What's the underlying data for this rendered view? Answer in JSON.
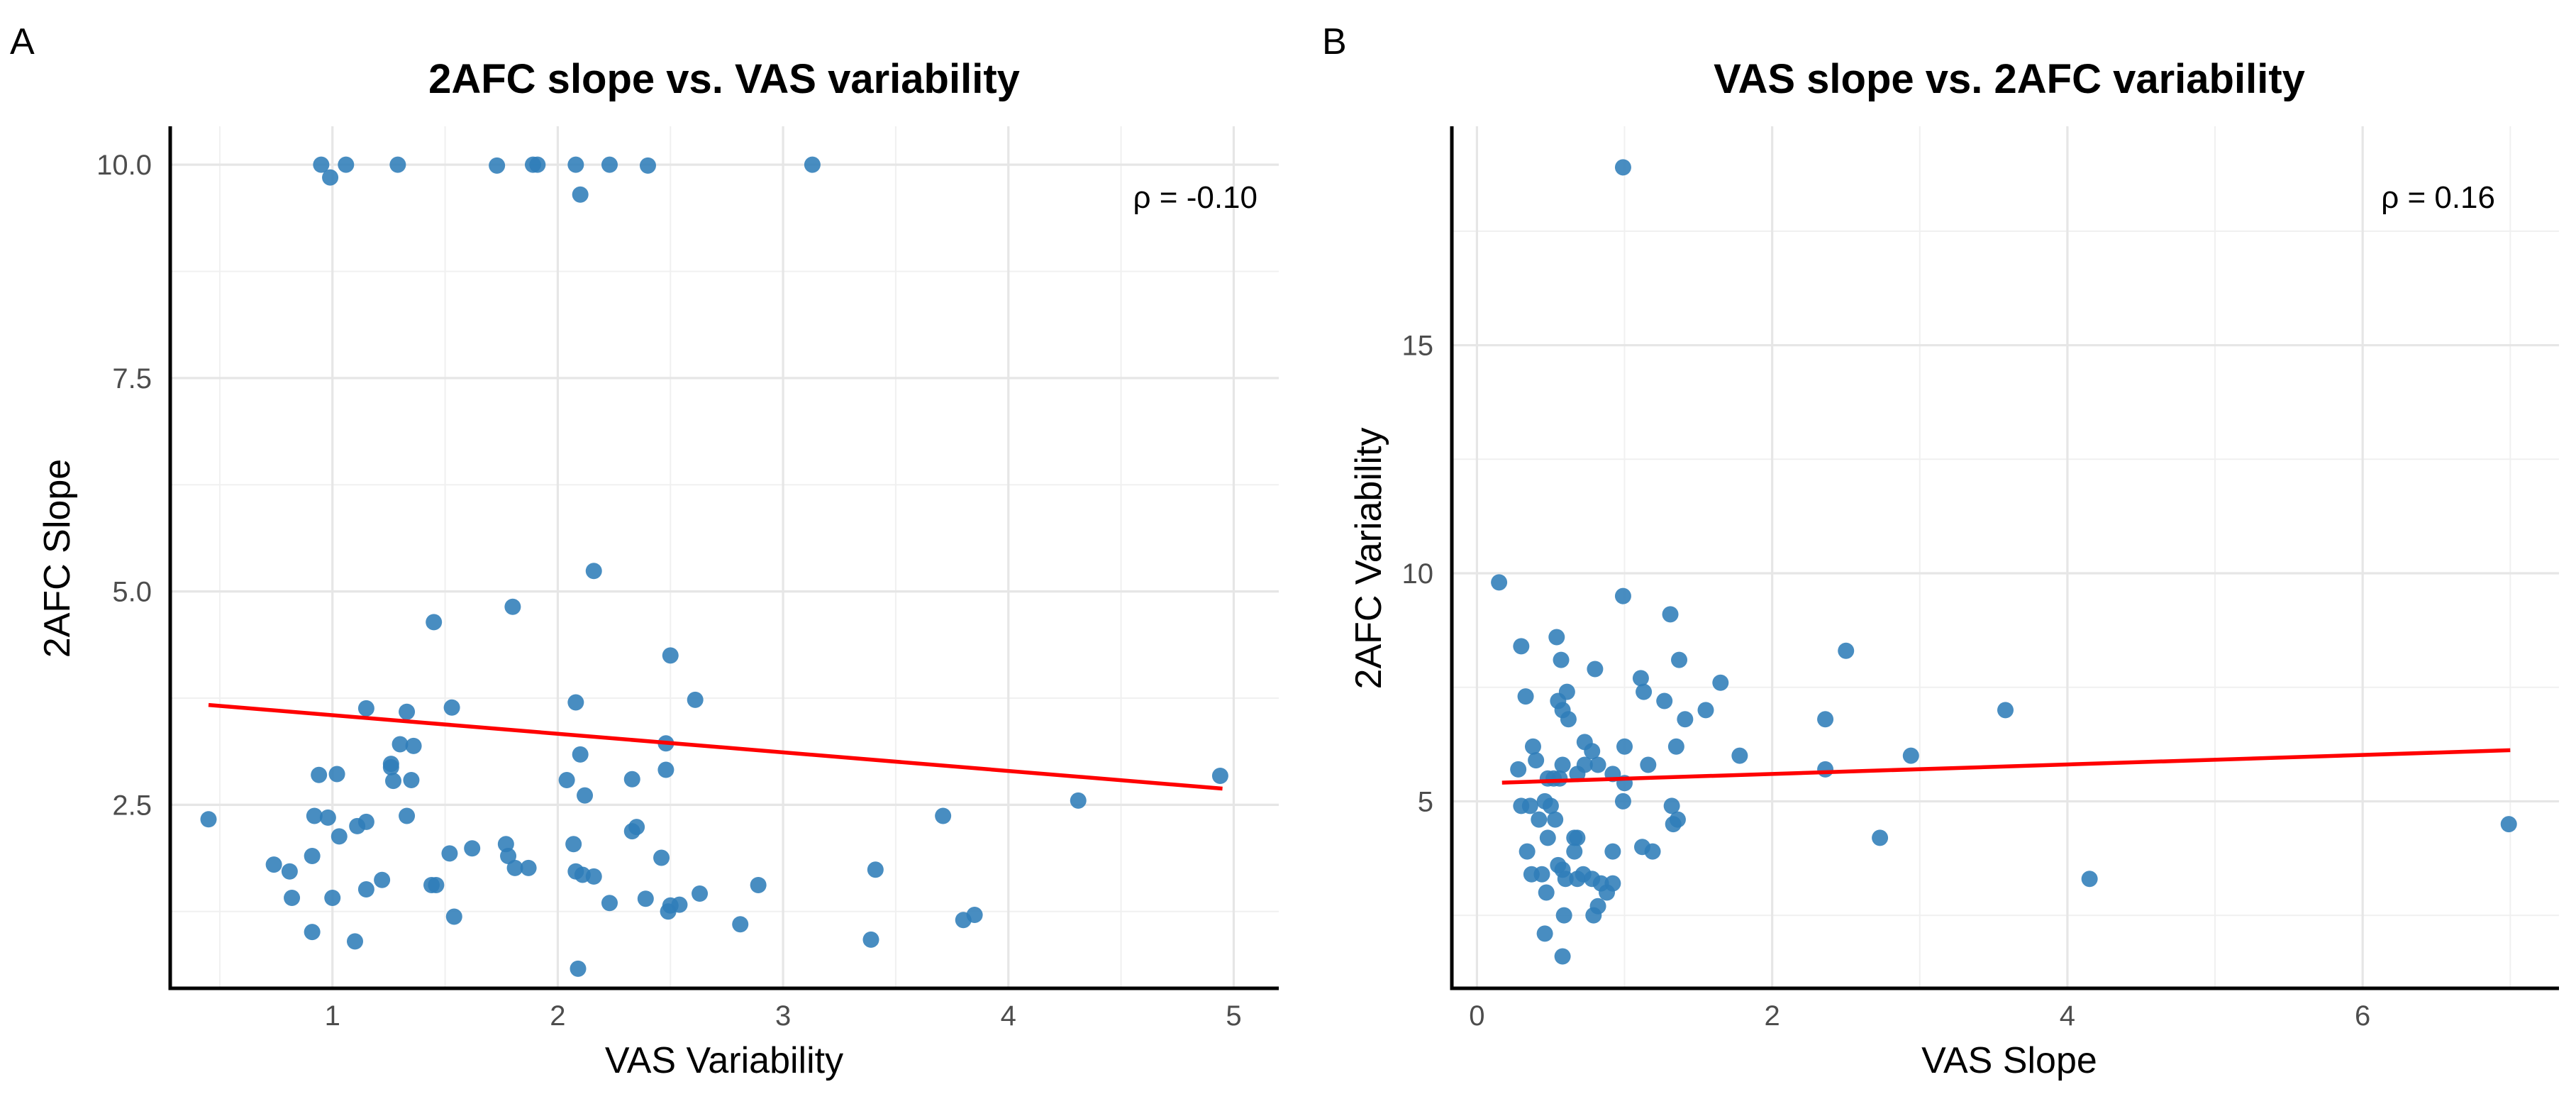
{
  "chart_data": [
    {
      "panel": "A",
      "type": "scatter",
      "title": "2AFC slope vs. VAS variability",
      "xlabel": "VAS Variability",
      "ylabel": "2AFC Slope",
      "xlim": [
        0.28,
        5.2
      ],
      "ylim": [
        0.35,
        10.45
      ],
      "xticks": [
        1,
        2,
        3,
        4,
        5
      ],
      "xtick_labels": [
        "1",
        "2",
        "3",
        "4",
        "5"
      ],
      "yticks": [
        2.5,
        5.0,
        7.5,
        10.0
      ],
      "ytick_labels": [
        "2.5",
        "5.0",
        "7.5",
        "10.0"
      ],
      "annotation": "ρ = -0.10",
      "grid": true,
      "fit_line": {
        "x": [
          0.45,
          4.95
        ],
        "y": [
          3.67,
          2.69
        ]
      },
      "points": [
        {
          "x": 0.95,
          "y": 10.0
        },
        {
          "x": 0.99,
          "y": 9.85
        },
        {
          "x": 1.06,
          "y": 10.0
        },
        {
          "x": 1.29,
          "y": 10.0
        },
        {
          "x": 1.73,
          "y": 9.99
        },
        {
          "x": 1.89,
          "y": 10.0
        },
        {
          "x": 1.91,
          "y": 10.0
        },
        {
          "x": 2.08,
          "y": 10.0
        },
        {
          "x": 2.23,
          "y": 10.0
        },
        {
          "x": 2.4,
          "y": 9.99
        },
        {
          "x": 3.13,
          "y": 10.0
        },
        {
          "x": 2.1,
          "y": 9.65
        },
        {
          "x": 2.16,
          "y": 5.24
        },
        {
          "x": 1.8,
          "y": 4.82
        },
        {
          "x": 1.45,
          "y": 4.64
        },
        {
          "x": 2.5,
          "y": 4.25
        },
        {
          "x": 2.61,
          "y": 3.73
        },
        {
          "x": 2.08,
          "y": 3.7
        },
        {
          "x": 1.15,
          "y": 3.63
        },
        {
          "x": 1.33,
          "y": 3.59
        },
        {
          "x": 1.53,
          "y": 3.64
        },
        {
          "x": 2.48,
          "y": 3.22
        },
        {
          "x": 1.3,
          "y": 3.21
        },
        {
          "x": 1.36,
          "y": 3.19
        },
        {
          "x": 2.1,
          "y": 3.09
        },
        {
          "x": 1.26,
          "y": 2.98
        },
        {
          "x": 2.48,
          "y": 2.91
        },
        {
          "x": 1.26,
          "y": 2.94
        },
        {
          "x": 0.94,
          "y": 2.85
        },
        {
          "x": 1.02,
          "y": 2.86
        },
        {
          "x": 2.33,
          "y": 2.8
        },
        {
          "x": 2.04,
          "y": 2.79
        },
        {
          "x": 1.27,
          "y": 2.78
        },
        {
          "x": 1.35,
          "y": 2.79
        },
        {
          "x": 4.94,
          "y": 2.84
        },
        {
          "x": 2.12,
          "y": 2.61
        },
        {
          "x": 4.31,
          "y": 2.55
        },
        {
          "x": 0.45,
          "y": 2.33
        },
        {
          "x": 0.92,
          "y": 2.37
        },
        {
          "x": 0.98,
          "y": 2.35
        },
        {
          "x": 1.33,
          "y": 2.37
        },
        {
          "x": 3.71,
          "y": 2.37
        },
        {
          "x": 1.15,
          "y": 2.3
        },
        {
          "x": 1.11,
          "y": 2.25
        },
        {
          "x": 2.35,
          "y": 2.24
        },
        {
          "x": 2.33,
          "y": 2.19
        },
        {
          "x": 1.03,
          "y": 2.13
        },
        {
          "x": 1.77,
          "y": 2.04
        },
        {
          "x": 2.07,
          "y": 2.04
        },
        {
          "x": 1.62,
          "y": 1.99
        },
        {
          "x": 1.52,
          "y": 1.93
        },
        {
          "x": 0.91,
          "y": 1.9
        },
        {
          "x": 1.78,
          "y": 1.9
        },
        {
          "x": 2.46,
          "y": 1.88
        },
        {
          "x": 0.74,
          "y": 1.8
        },
        {
          "x": 1.81,
          "y": 1.76
        },
        {
          "x": 1.87,
          "y": 1.76
        },
        {
          "x": 0.81,
          "y": 1.72
        },
        {
          "x": 2.08,
          "y": 1.72
        },
        {
          "x": 3.41,
          "y": 1.74
        },
        {
          "x": 2.11,
          "y": 1.68
        },
        {
          "x": 2.16,
          "y": 1.66
        },
        {
          "x": 1.22,
          "y": 1.62
        },
        {
          "x": 1.44,
          "y": 1.56
        },
        {
          "x": 1.46,
          "y": 1.56
        },
        {
          "x": 2.89,
          "y": 1.56
        },
        {
          "x": 1.15,
          "y": 1.51
        },
        {
          "x": 0.82,
          "y": 1.41
        },
        {
          "x": 1.0,
          "y": 1.41
        },
        {
          "x": 2.63,
          "y": 1.46
        },
        {
          "x": 2.39,
          "y": 1.4
        },
        {
          "x": 2.23,
          "y": 1.35
        },
        {
          "x": 2.54,
          "y": 1.33
        },
        {
          "x": 2.5,
          "y": 1.32
        },
        {
          "x": 2.49,
          "y": 1.25
        },
        {
          "x": 3.85,
          "y": 1.21
        },
        {
          "x": 1.54,
          "y": 1.19
        },
        {
          "x": 3.8,
          "y": 1.15
        },
        {
          "x": 2.81,
          "y": 1.1
        },
        {
          "x": 0.91,
          "y": 1.01
        },
        {
          "x": 3.39,
          "y": 0.92
        },
        {
          "x": 1.1,
          "y": 0.9
        },
        {
          "x": 2.09,
          "y": 0.58
        }
      ]
    },
    {
      "panel": "B",
      "type": "scatter",
      "title": "VAS slope vs. 2AFC variability",
      "xlabel": "VAS Slope",
      "ylabel": "2AFC Variability",
      "xlim": [
        -0.17,
        7.33
      ],
      "ylim": [
        0.9,
        19.8
      ],
      "xticks": [
        0,
        2,
        4,
        6
      ],
      "xtick_labels": [
        "0",
        "2",
        "4",
        "6"
      ],
      "yticks": [
        5,
        10,
        15
      ],
      "ytick_labels": [
        "5",
        "10",
        "15"
      ],
      "annotation": "ρ = 0.16",
      "grid": true,
      "fit_line": {
        "x": [
          0.17,
          7.0
        ],
        "y": [
          5.41,
          6.12
        ]
      },
      "points": [
        {
          "x": 0.99,
          "y": 18.9
        },
        {
          "x": 0.15,
          "y": 9.8
        },
        {
          "x": 0.99,
          "y": 9.5
        },
        {
          "x": 1.31,
          "y": 9.1
        },
        {
          "x": 0.54,
          "y": 8.6
        },
        {
          "x": 0.3,
          "y": 8.4
        },
        {
          "x": 2.5,
          "y": 8.3
        },
        {
          "x": 0.57,
          "y": 8.1
        },
        {
          "x": 1.37,
          "y": 8.1
        },
        {
          "x": 0.8,
          "y": 7.9
        },
        {
          "x": 1.11,
          "y": 7.7
        },
        {
          "x": 1.65,
          "y": 7.6
        },
        {
          "x": 0.61,
          "y": 7.4
        },
        {
          "x": 1.13,
          "y": 7.4
        },
        {
          "x": 0.33,
          "y": 7.3
        },
        {
          "x": 0.55,
          "y": 7.2
        },
        {
          "x": 1.27,
          "y": 7.2
        },
        {
          "x": 0.58,
          "y": 7.0
        },
        {
          "x": 1.55,
          "y": 7.0
        },
        {
          "x": 3.58,
          "y": 7.0
        },
        {
          "x": 0.62,
          "y": 6.8
        },
        {
          "x": 1.41,
          "y": 6.8
        },
        {
          "x": 2.36,
          "y": 6.8
        },
        {
          "x": 0.73,
          "y": 6.3
        },
        {
          "x": 0.38,
          "y": 6.2
        },
        {
          "x": 1.35,
          "y": 6.2
        },
        {
          "x": 1.0,
          "y": 6.2
        },
        {
          "x": 0.78,
          "y": 6.1
        },
        {
          "x": 1.78,
          "y": 6.0
        },
        {
          "x": 2.94,
          "y": 6.0
        },
        {
          "x": 0.4,
          "y": 5.9
        },
        {
          "x": 0.82,
          "y": 5.8
        },
        {
          "x": 0.58,
          "y": 5.8
        },
        {
          "x": 0.73,
          "y": 5.8
        },
        {
          "x": 1.16,
          "y": 5.8
        },
        {
          "x": 0.28,
          "y": 5.7
        },
        {
          "x": 2.36,
          "y": 5.7
        },
        {
          "x": 0.92,
          "y": 5.6
        },
        {
          "x": 0.68,
          "y": 5.6
        },
        {
          "x": 0.48,
          "y": 5.5
        },
        {
          "x": 0.52,
          "y": 5.5
        },
        {
          "x": 0.56,
          "y": 5.5
        },
        {
          "x": 1.0,
          "y": 5.4
        },
        {
          "x": 0.3,
          "y": 4.9
        },
        {
          "x": 0.36,
          "y": 4.9
        },
        {
          "x": 0.46,
          "y": 5.0
        },
        {
          "x": 0.5,
          "y": 4.9
        },
        {
          "x": 0.99,
          "y": 5.0
        },
        {
          "x": 1.32,
          "y": 4.9
        },
        {
          "x": 0.42,
          "y": 4.6
        },
        {
          "x": 0.53,
          "y": 4.6
        },
        {
          "x": 1.33,
          "y": 4.5
        },
        {
          "x": 1.36,
          "y": 4.6
        },
        {
          "x": 6.99,
          "y": 4.5
        },
        {
          "x": 0.68,
          "y": 4.2
        },
        {
          "x": 0.66,
          "y": 4.2
        },
        {
          "x": 2.73,
          "y": 4.2
        },
        {
          "x": 0.48,
          "y": 4.2
        },
        {
          "x": 0.34,
          "y": 3.9
        },
        {
          "x": 0.66,
          "y": 3.9
        },
        {
          "x": 0.92,
          "y": 3.9
        },
        {
          "x": 1.12,
          "y": 4.0
        },
        {
          "x": 1.19,
          "y": 3.9
        },
        {
          "x": 0.55,
          "y": 3.6
        },
        {
          "x": 0.58,
          "y": 3.5
        },
        {
          "x": 0.37,
          "y": 3.4
        },
        {
          "x": 0.44,
          "y": 3.4
        },
        {
          "x": 0.72,
          "y": 3.4
        },
        {
          "x": 0.6,
          "y": 3.3
        },
        {
          "x": 0.68,
          "y": 3.3
        },
        {
          "x": 0.78,
          "y": 3.3
        },
        {
          "x": 0.84,
          "y": 3.2
        },
        {
          "x": 0.92,
          "y": 3.2
        },
        {
          "x": 4.15,
          "y": 3.3
        },
        {
          "x": 0.47,
          "y": 3.0
        },
        {
          "x": 0.88,
          "y": 3.0
        },
        {
          "x": 0.82,
          "y": 2.7
        },
        {
          "x": 0.79,
          "y": 2.5
        },
        {
          "x": 0.59,
          "y": 2.5
        },
        {
          "x": 0.46,
          "y": 2.1
        },
        {
          "x": 0.58,
          "y": 1.6
        }
      ]
    }
  ]
}
